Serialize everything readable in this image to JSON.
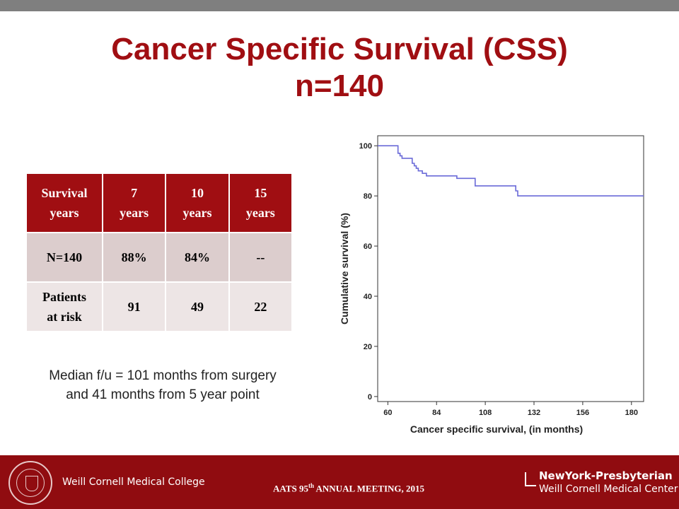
{
  "slide": {
    "title_line1": "Cancer Specific Survival (CSS)",
    "title_line2": "n=140",
    "accent_color": "#a00e12",
    "median_note": "Median f/u = 101 months from surgery and 41 months from 5 year point"
  },
  "table": {
    "header": [
      [
        "Survival",
        "years"
      ],
      [
        "7",
        "years"
      ],
      [
        "10",
        "years"
      ],
      [
        "15",
        "years"
      ]
    ],
    "row1": [
      "N=140",
      "88%",
      "84%",
      "--"
    ],
    "row2_label": [
      "Patients",
      "at risk"
    ],
    "row2": [
      "91",
      "49",
      "22"
    ]
  },
  "footer": {
    "college": "Weill Cornell Medical College",
    "meeting_prefix": "AATS 95",
    "meeting_sup": "th",
    "meeting_suffix": " ANNUAL MEETING, 2015",
    "hospital_name": "NewYork-Presbyterian",
    "hospital_sub": "Weill Cornell Medical Center"
  },
  "chart_data": {
    "type": "line",
    "xlabel": "Cancer specific survival, (in months)",
    "ylabel": "Cumulative survival (%)",
    "xlim": [
      55,
      186
    ],
    "ylim": [
      -2,
      104
    ],
    "x_ticks": [
      60,
      84,
      108,
      132,
      156,
      180
    ],
    "y_ticks": [
      0,
      20,
      40,
      60,
      80,
      100
    ],
    "line_color": "#6a6ad8",
    "step": true,
    "series": [
      {
        "x": [
          55,
          64,
          65,
          66,
          67,
          69,
          71,
          72,
          73,
          74,
          75,
          77,
          79,
          93,
          94,
          100,
          103,
          114,
          115,
          123,
          124,
          186
        ],
        "y": [
          100,
          100,
          97,
          96,
          95,
          95,
          95,
          93,
          92,
          91,
          90,
          89,
          88,
          88,
          87,
          87,
          84,
          84,
          84,
          82,
          80,
          80
        ]
      }
    ]
  }
}
